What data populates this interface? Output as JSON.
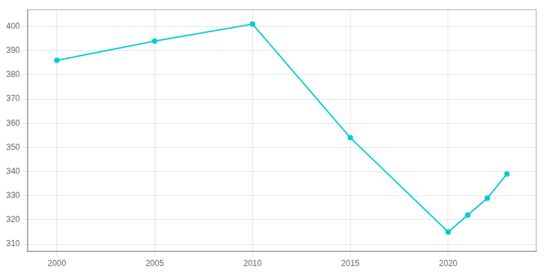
{
  "chart_data": {
    "type": "line",
    "x": [
      2000,
      2005,
      2010,
      2015,
      2020,
      2021,
      2022,
      2023
    ],
    "values": [
      386,
      394,
      401,
      354,
      315,
      322,
      329,
      339
    ],
    "color": "#00CED1",
    "marker": "circle",
    "xlim": [
      1998.5,
      2024.5
    ],
    "xticks": [
      2000,
      2005,
      2010,
      2015,
      2020
    ],
    "ylim": [
      307,
      407
    ],
    "yticks": [
      310,
      320,
      330,
      340,
      350,
      360,
      370,
      380,
      390,
      400
    ],
    "grid": true
  }
}
